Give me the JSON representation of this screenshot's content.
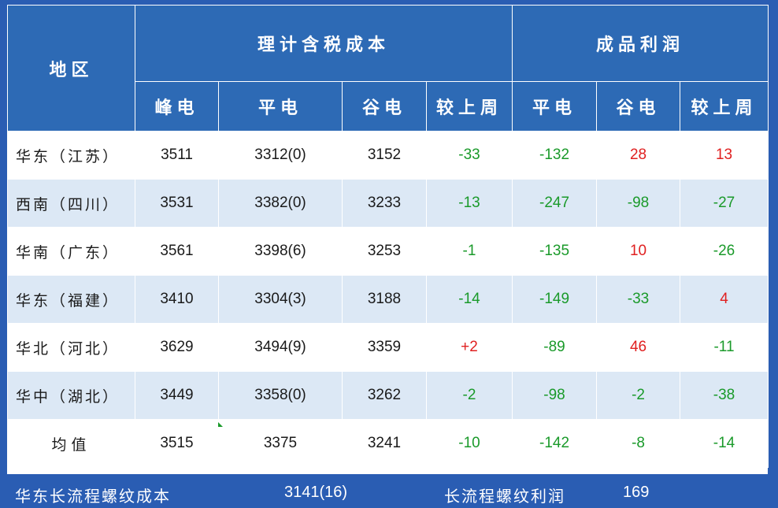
{
  "header": {
    "region": "地区",
    "cost_group": "理计含税成本",
    "profit_group": "成品利润",
    "cost_cols": [
      "峰电",
      "平电",
      "谷电",
      "较上周"
    ],
    "profit_cols": [
      "平电",
      "谷电",
      "较上周"
    ]
  },
  "rows": [
    {
      "region": "华东（江苏）",
      "peak": "3511",
      "flat": "3312(0)",
      "valley": "3152",
      "cost_wow": "-33",
      "p_flat": "-132",
      "p_valley": "28",
      "p_wow": "13"
    },
    {
      "region": "西南（四川）",
      "peak": "3531",
      "flat": "3382(0)",
      "valley": "3233",
      "cost_wow": "-13",
      "p_flat": "-247",
      "p_valley": "-98",
      "p_wow": "-27"
    },
    {
      "region": "华南（广东）",
      "peak": "3561",
      "flat": "3398(6)",
      "valley": "3253",
      "cost_wow": "-1",
      "p_flat": "-135",
      "p_valley": "10",
      "p_wow": "-26"
    },
    {
      "region": "华东（福建）",
      "peak": "3410",
      "flat": "3304(3)",
      "valley": "3188",
      "cost_wow": "-14",
      "p_flat": "-149",
      "p_valley": "-33",
      "p_wow": "4"
    },
    {
      "region": "华北（河北）",
      "peak": "3629",
      "flat": "3494(9)",
      "valley": "3359",
      "cost_wow": "+2",
      "p_flat": "-89",
      "p_valley": "46",
      "p_wow": "-11"
    },
    {
      "region": "华中（湖北）",
      "peak": "3449",
      "flat": "3358(0)",
      "valley": "3262",
      "cost_wow": "-2",
      "p_flat": "-98",
      "p_valley": "-2",
      "p_wow": "-38"
    }
  ],
  "average": {
    "label": "均值",
    "peak": "3515",
    "flat": "3375",
    "valley": "3241",
    "cost_wow": "-10",
    "p_flat": "-142",
    "p_valley": "-8",
    "p_wow": "-14"
  },
  "footer": {
    "cost_label": "华东长流程螺纹成本",
    "cost_value": "3141(16)",
    "profit_label": "长流程螺纹利润",
    "profit_value": "169"
  },
  "colors": {
    "header_bg": "#2d6ab5",
    "stripe": "#dce8f5",
    "positive": "#e02020",
    "negative": "#1a9a2a"
  }
}
